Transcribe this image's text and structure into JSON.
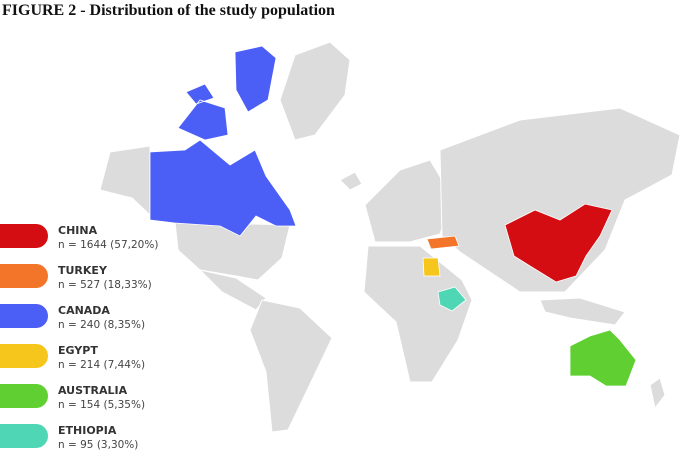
{
  "header": {
    "title": "FIGURE 2 - Distribution of the study population"
  },
  "legend": {
    "items": [
      {
        "name": "CHINA",
        "label": "n = 1644 (57,20%)",
        "color": "#d40d12"
      },
      {
        "name": "TURKEY",
        "label": "n = 527 (18,33%)",
        "color": "#f2752a"
      },
      {
        "name": "CANADA",
        "label": "n = 240 (8,35%)",
        "color": "#4b5ef5"
      },
      {
        "name": "EGYPT",
        "label": "n = 214 (7,44%)",
        "color": "#f6c61c"
      },
      {
        "name": "AUSTRALIA",
        "label": "n = 154 (5,35%)",
        "color": "#5fcf31"
      },
      {
        "name": "ETHIOPIA",
        "label": "n = 95 (3,30%)",
        "color": "#4fd6b4"
      }
    ]
  }
}
